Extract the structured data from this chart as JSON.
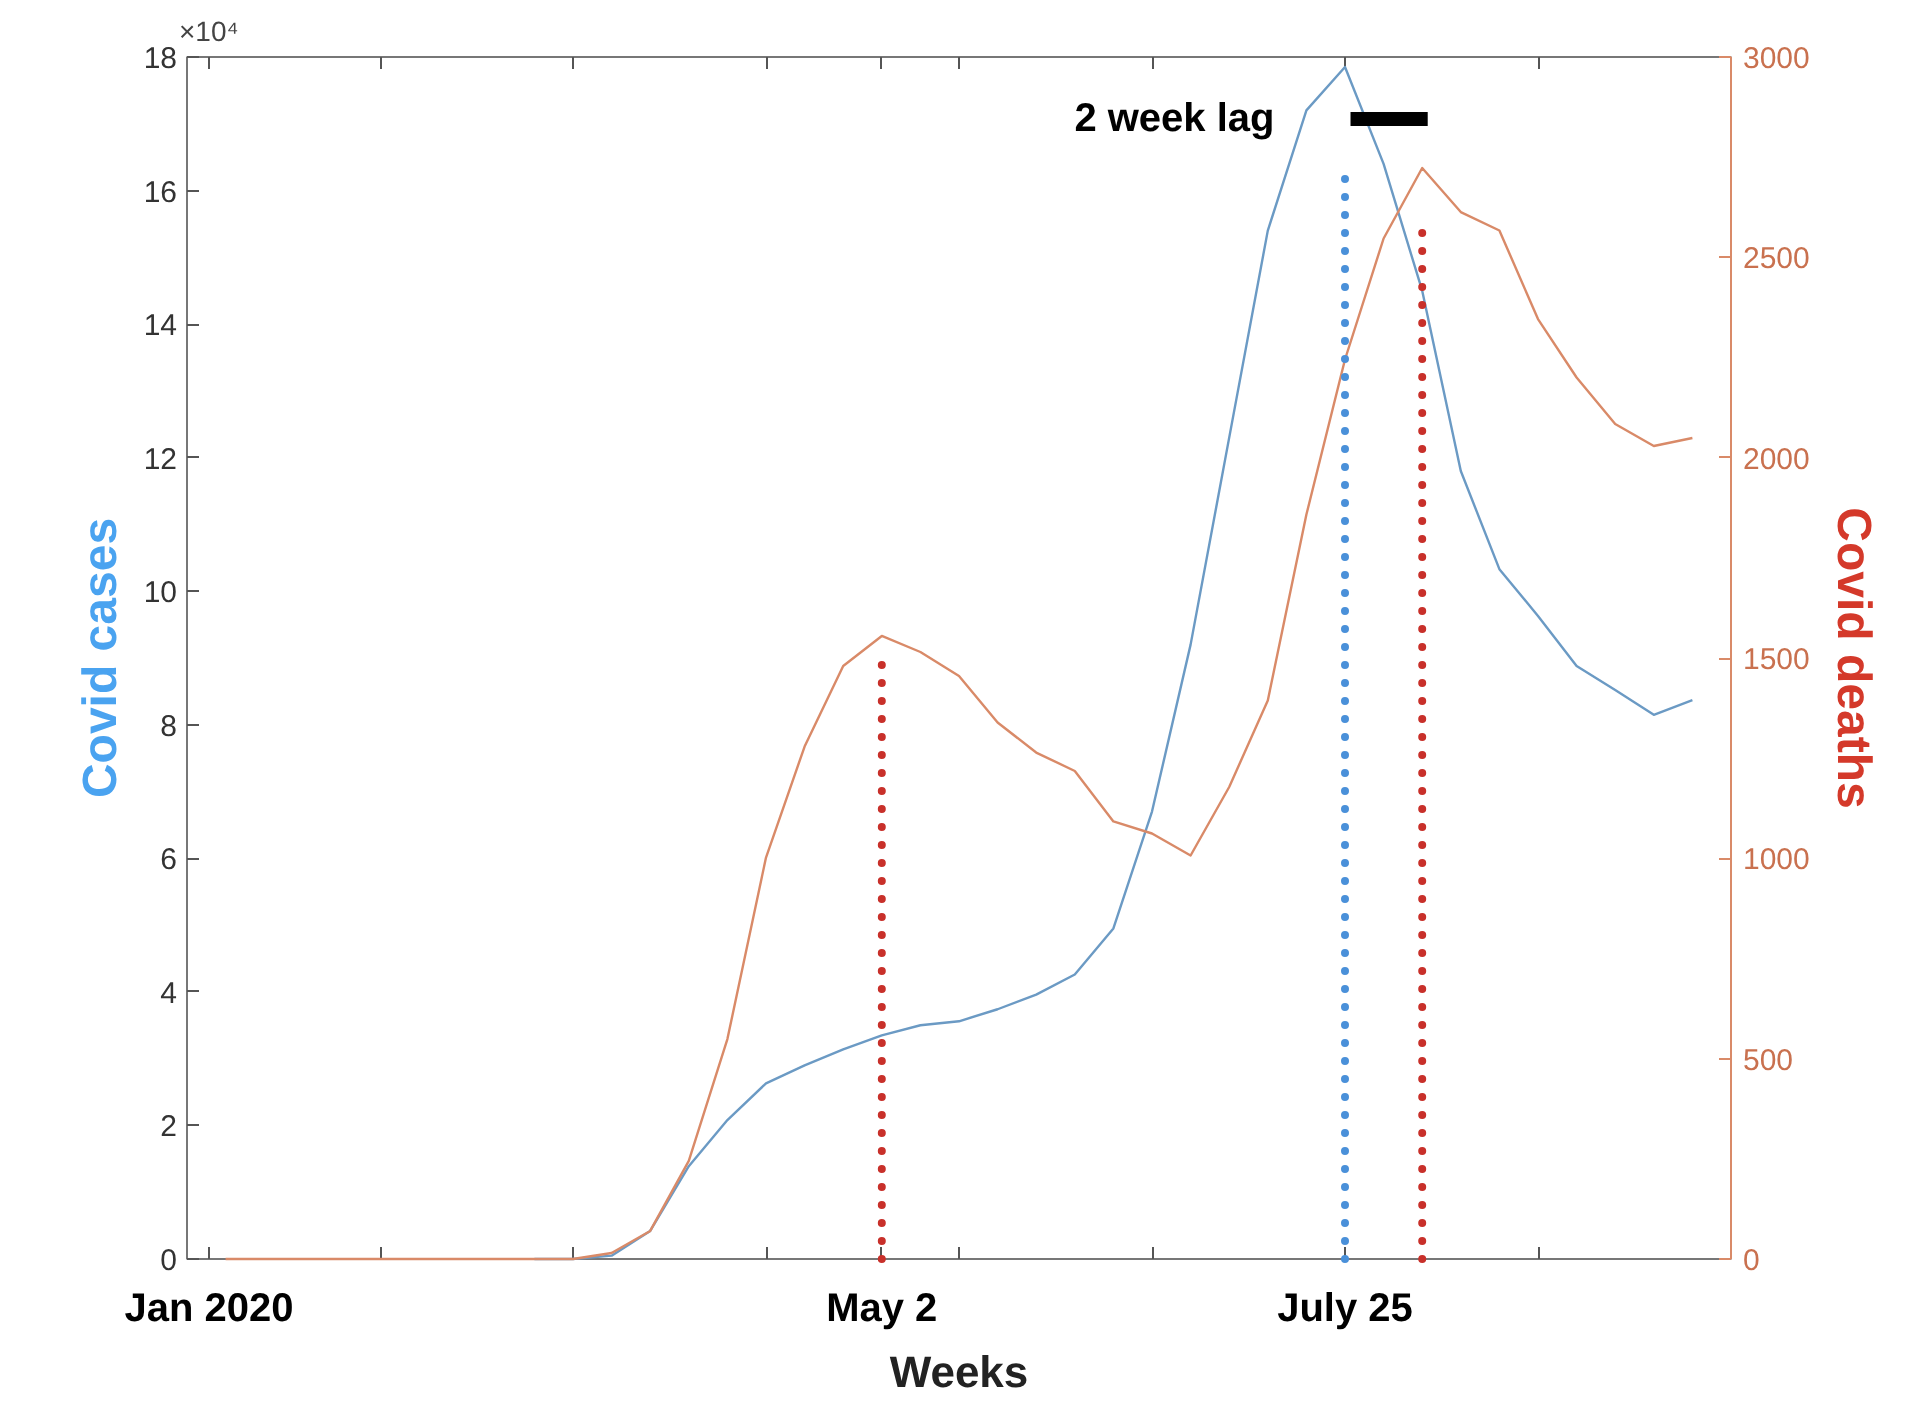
{
  "chart_data": {
    "type": "line",
    "xlabel": "Weeks",
    "ylabel": "Covid cases",
    "y2label": "Covid deaths",
    "xlim": [
      "2019-12-28",
      "2020-10-03"
    ],
    "xticks": [
      {
        "value": "2020-01",
        "label": "Jan 2020"
      },
      {
        "value": "2020-02-01",
        "label": null
      },
      {
        "value": "2020-03-07",
        "label": null
      },
      {
        "value": "2020-04-11",
        "label": null
      },
      {
        "value": "2020-05-02",
        "label": "May 2"
      },
      {
        "value": "2020-05-16",
        "label": null
      },
      {
        "value": "2020-06-20",
        "label": null
      },
      {
        "value": "2020-07-25",
        "label": "July 25"
      },
      {
        "value": "2020-08-29",
        "label": null
      },
      {
        "value": "2020-10-03",
        "label": null
      }
    ],
    "ylim": [
      0,
      18
    ],
    "yticks": [
      0,
      2,
      4,
      6,
      8,
      10,
      12,
      14,
      16,
      18
    ],
    "y2lim": [
      0,
      3000
    ],
    "y2ticks": [
      0,
      500,
      1000,
      1500,
      2000,
      2500,
      3000
    ],
    "x": [
      "2020-01-04",
      "2020-01-11",
      "2020-01-18",
      "2020-01-25",
      "2020-02-01",
      "2020-02-08",
      "2020-02-15",
      "2020-02-22",
      "2020-02-29",
      "2020-03-07",
      "2020-03-14",
      "2020-03-21",
      "2020-03-28",
      "2020-04-04",
      "2020-04-11",
      "2020-04-18",
      "2020-04-25",
      "2020-05-02",
      "2020-05-09",
      "2020-05-16",
      "2020-05-23",
      "2020-05-30",
      "2020-06-06",
      "2020-06-13",
      "2020-06-20",
      "2020-06-27",
      "2020-07-04",
      "2020-07-11",
      "2020-07-18",
      "2020-07-25",
      "2020-08-01",
      "2020-08-08",
      "2020-08-15",
      "2020-08-22",
      "2020-08-29",
      "2020-09-05",
      "2020-09-12",
      "2020-09-19",
      "2020-09-26"
    ],
    "series": [
      {
        "color": "#6b9ac4",
        "values": [
          null,
          null,
          null,
          null,
          null,
          null,
          null,
          null,
          0,
          0,
          0.05,
          0.42,
          1.39,
          2.08,
          2.63,
          2.9,
          3.14,
          3.35,
          3.5,
          3.56,
          3.74,
          3.96,
          4.26,
          4.95,
          6.7,
          9.2,
          12.3,
          15.4,
          17.2,
          17.85,
          16.4,
          14.5,
          11.8,
          10.33,
          9.63,
          8.88,
          8.52,
          8.15,
          8.37
        ]
      },
      {
        "color": "#d98a68",
        "axis": "y2",
        "values": [
          0,
          0,
          0,
          0,
          0,
          0,
          0,
          0,
          0,
          0,
          15,
          70,
          245,
          549,
          1002,
          1279,
          1480,
          1555,
          1515,
          1455,
          1339,
          1264,
          1218,
          1092,
          1062,
          1007,
          1178,
          1394,
          1858,
          2245,
          2547,
          2723,
          2613,
          2567,
          2346,
          2200,
          2084,
          2029,
          2049
        ]
      },
      {
        "color": "#4a90d9",
        "x": [
          "2020-07-25",
          "2020-07-25"
        ],
        "values": [
          0,
          16.3
        ],
        "line_style": "dotted"
      },
      {
        "color": "#c8302a",
        "axis": "y2",
        "x": [
          "2020-05-02",
          "2020-05-02"
        ],
        "values": [
          0,
          1505
        ],
        "line_style": "dotted"
      },
      {
        "color": "#c8302a",
        "axis": "y2",
        "x": [
          "2020-08-08",
          "2020-08-08"
        ],
        "values": [
          0,
          2567
        ],
        "line_style": "dotted"
      },
      {
        "color": "#000000",
        "x": [
          "2020-07-26",
          "2020-08-09"
        ],
        "values": [
          17.07,
          17.07
        ],
        "line_style": "solid"
      }
    ],
    "annotations": [
      "×10⁴",
      "2 week lag"
    ],
    "grid": false
  }
}
